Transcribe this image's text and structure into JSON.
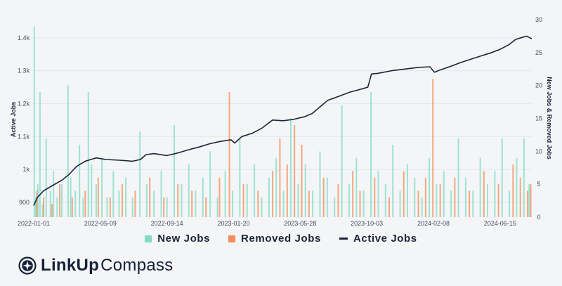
{
  "chart_data": {
    "type": "bar+line",
    "title": "",
    "left_axis": {
      "title": "Active Jobs",
      "ticks": [
        {
          "value": 900,
          "label": "900"
        },
        {
          "value": 1000,
          "label": "1k"
        },
        {
          "value": 1100,
          "label": "1.1k"
        },
        {
          "value": 1200,
          "label": "1.2k"
        },
        {
          "value": 1300,
          "label": "1.3k"
        },
        {
          "value": 1400,
          "label": "1.4k"
        }
      ],
      "range": [
        855,
        1455
      ]
    },
    "right_axis": {
      "title": "New Jobs & Removed Jobs",
      "ticks": [
        {
          "value": 0,
          "label": "0"
        },
        {
          "value": 5,
          "label": "5"
        },
        {
          "value": 10,
          "label": "10"
        },
        {
          "value": 15,
          "label": "15"
        },
        {
          "value": 20,
          "label": "20"
        },
        {
          "value": 25,
          "label": "25"
        },
        {
          "value": 30,
          "label": "30"
        }
      ],
      "range": [
        0,
        30
      ]
    },
    "x_axis": {
      "range": [
        "2022-01-01",
        "2024-08-15"
      ],
      "ticks": [
        {
          "value": "2022-01-01",
          "label": "2022-01-01"
        },
        {
          "value": "2022-05-09",
          "label": "2022-05-09"
        },
        {
          "value": "2022-09-14",
          "label": "2022-09-14"
        },
        {
          "value": "2023-01-20",
          "label": "2023-01-20"
        },
        {
          "value": "2023-05-28",
          "label": "2023-05-28"
        },
        {
          "value": "2023-10-03",
          "label": "2023-10-03"
        },
        {
          "value": "2024-02-08",
          "label": "2024-02-08"
        },
        {
          "value": "2024-06-15",
          "label": "2024-06-15"
        }
      ]
    },
    "grid": true,
    "legend_position": "bottom",
    "series": [
      {
        "name": "New Jobs",
        "kind": "bar",
        "axis": "right",
        "color": "#7fdcc8",
        "points": [
          {
            "x": "2022-01-02",
            "y": 29
          },
          {
            "x": "2022-01-05",
            "y": 3
          },
          {
            "x": "2022-01-09",
            "y": 5
          },
          {
            "x": "2022-01-13",
            "y": 19
          },
          {
            "x": "2022-01-18",
            "y": 2
          },
          {
            "x": "2022-01-25",
            "y": 12
          },
          {
            "x": "2022-02-02",
            "y": 4
          },
          {
            "x": "2022-02-08",
            "y": 7
          },
          {
            "x": "2022-02-15",
            "y": 3
          },
          {
            "x": "2022-02-24",
            "y": 5
          },
          {
            "x": "2022-03-08",
            "y": 20
          },
          {
            "x": "2022-03-13",
            "y": 6
          },
          {
            "x": "2022-03-22",
            "y": 4
          },
          {
            "x": "2022-03-30",
            "y": 11
          },
          {
            "x": "2022-04-06",
            "y": 3
          },
          {
            "x": "2022-04-16",
            "y": 19
          },
          {
            "x": "2022-04-22",
            "y": 8
          },
          {
            "x": "2022-05-01",
            "y": 5
          },
          {
            "x": "2022-05-12",
            "y": 9
          },
          {
            "x": "2022-05-22",
            "y": 3
          },
          {
            "x": "2022-06-03",
            "y": 7
          },
          {
            "x": "2022-06-14",
            "y": 4
          },
          {
            "x": "2022-06-27",
            "y": 6
          },
          {
            "x": "2022-07-10",
            "y": 3
          },
          {
            "x": "2022-07-24",
            "y": 13
          },
          {
            "x": "2022-08-06",
            "y": 5
          },
          {
            "x": "2022-08-20",
            "y": 4
          },
          {
            "x": "2022-09-03",
            "y": 7
          },
          {
            "x": "2022-09-14",
            "y": 3
          },
          {
            "x": "2022-09-28",
            "y": 14
          },
          {
            "x": "2022-10-12",
            "y": 5
          },
          {
            "x": "2022-10-26",
            "y": 8
          },
          {
            "x": "2022-11-08",
            "y": 4
          },
          {
            "x": "2022-11-22",
            "y": 6
          },
          {
            "x": "2022-12-06",
            "y": 10
          },
          {
            "x": "2022-12-20",
            "y": 3
          },
          {
            "x": "2023-01-04",
            "y": 7
          },
          {
            "x": "2023-01-18",
            "y": 4
          },
          {
            "x": "2023-02-01",
            "y": 12
          },
          {
            "x": "2023-02-15",
            "y": 5
          },
          {
            "x": "2023-03-01",
            "y": 8
          },
          {
            "x": "2023-03-15",
            "y": 3
          },
          {
            "x": "2023-03-29",
            "y": 6
          },
          {
            "x": "2023-04-12",
            "y": 9
          },
          {
            "x": "2023-04-26",
            "y": 4
          },
          {
            "x": "2023-05-10",
            "y": 15
          },
          {
            "x": "2023-05-24",
            "y": 5
          },
          {
            "x": "2023-06-07",
            "y": 8
          },
          {
            "x": "2023-06-21",
            "y": 4
          },
          {
            "x": "2023-07-05",
            "y": 10
          },
          {
            "x": "2023-07-19",
            "y": 6
          },
          {
            "x": "2023-08-02",
            "y": 3
          },
          {
            "x": "2023-08-16",
            "y": 17
          },
          {
            "x": "2023-08-30",
            "y": 5
          },
          {
            "x": "2023-09-13",
            "y": 9
          },
          {
            "x": "2023-09-27",
            "y": 4
          },
          {
            "x": "2023-10-11",
            "y": 19
          },
          {
            "x": "2023-10-25",
            "y": 7
          },
          {
            "x": "2023-11-08",
            "y": 5
          },
          {
            "x": "2023-11-22",
            "y": 11
          },
          {
            "x": "2023-12-06",
            "y": 4
          },
          {
            "x": "2023-12-20",
            "y": 8
          },
          {
            "x": "2024-01-03",
            "y": 6
          },
          {
            "x": "2024-01-17",
            "y": 3
          },
          {
            "x": "2024-01-31",
            "y": 9
          },
          {
            "x": "2024-02-14",
            "y": 5
          },
          {
            "x": "2024-02-28",
            "y": 7
          },
          {
            "x": "2024-03-13",
            "y": 4
          },
          {
            "x": "2024-03-27",
            "y": 12
          },
          {
            "x": "2024-04-10",
            "y": 6
          },
          {
            "x": "2024-04-24",
            "y": 4
          },
          {
            "x": "2024-05-08",
            "y": 9
          },
          {
            "x": "2024-05-22",
            "y": 5
          },
          {
            "x": "2024-06-05",
            "y": 7
          },
          {
            "x": "2024-06-19",
            "y": 12
          },
          {
            "x": "2024-07-03",
            "y": 4
          },
          {
            "x": "2024-07-17",
            "y": 9
          },
          {
            "x": "2024-07-31",
            "y": 12
          },
          {
            "x": "2024-08-10",
            "y": 5
          }
        ]
      },
      {
        "name": "Removed Jobs",
        "kind": "bar",
        "axis": "right",
        "color": "#f58b5a",
        "points": [
          {
            "x": "2022-01-07",
            "y": 4
          },
          {
            "x": "2022-01-20",
            "y": 3
          },
          {
            "x": "2022-02-05",
            "y": 2
          },
          {
            "x": "2022-02-20",
            "y": 5
          },
          {
            "x": "2022-03-16",
            "y": 3
          },
          {
            "x": "2022-04-10",
            "y": 4
          },
          {
            "x": "2022-05-05",
            "y": 6
          },
          {
            "x": "2022-05-28",
            "y": 3
          },
          {
            "x": "2022-06-20",
            "y": 5
          },
          {
            "x": "2022-07-15",
            "y": 4
          },
          {
            "x": "2022-08-12",
            "y": 6
          },
          {
            "x": "2022-09-08",
            "y": 3
          },
          {
            "x": "2022-10-05",
            "y": 5
          },
          {
            "x": "2022-11-01",
            "y": 4
          },
          {
            "x": "2022-11-28",
            "y": 3
          },
          {
            "x": "2022-12-24",
            "y": 6
          },
          {
            "x": "2023-01-12",
            "y": 19
          },
          {
            "x": "2023-02-08",
            "y": 5
          },
          {
            "x": "2023-03-08",
            "y": 4
          },
          {
            "x": "2023-04-05",
            "y": 7
          },
          {
            "x": "2023-04-19",
            "y": 12
          },
          {
            "x": "2023-05-03",
            "y": 8
          },
          {
            "x": "2023-05-17",
            "y": 14
          },
          {
            "x": "2023-05-31",
            "y": 11
          },
          {
            "x": "2023-06-14",
            "y": 4
          },
          {
            "x": "2023-07-12",
            "y": 6
          },
          {
            "x": "2023-08-09",
            "y": 5
          },
          {
            "x": "2023-09-06",
            "y": 7
          },
          {
            "x": "2023-09-20",
            "y": 4
          },
          {
            "x": "2023-10-18",
            "y": 6
          },
          {
            "x": "2023-11-15",
            "y": 3
          },
          {
            "x": "2023-12-13",
            "y": 7
          },
          {
            "x": "2024-01-10",
            "y": 4
          },
          {
            "x": "2024-01-24",
            "y": 6
          },
          {
            "x": "2024-02-07",
            "y": 21
          },
          {
            "x": "2024-02-21",
            "y": 5
          },
          {
            "x": "2024-03-20",
            "y": 6
          },
          {
            "x": "2024-04-17",
            "y": 4
          },
          {
            "x": "2024-05-15",
            "y": 7
          },
          {
            "x": "2024-06-12",
            "y": 5
          },
          {
            "x": "2024-07-10",
            "y": 8
          },
          {
            "x": "2024-07-24",
            "y": 6
          },
          {
            "x": "2024-08-07",
            "y": 4
          },
          {
            "x": "2024-08-13",
            "y": 5
          }
        ]
      },
      {
        "name": "Active Jobs",
        "kind": "line",
        "axis": "left",
        "color": "#1b2438",
        "points": [
          {
            "x": "2022-01-01",
            "y": 890
          },
          {
            "x": "2022-01-08",
            "y": 915
          },
          {
            "x": "2022-01-20",
            "y": 935
          },
          {
            "x": "2022-02-05",
            "y": 950
          },
          {
            "x": "2022-02-25",
            "y": 968
          },
          {
            "x": "2022-03-10",
            "y": 985
          },
          {
            "x": "2022-03-25",
            "y": 1010
          },
          {
            "x": "2022-04-10",
            "y": 1025
          },
          {
            "x": "2022-05-01",
            "y": 1035
          },
          {
            "x": "2022-05-20",
            "y": 1030
          },
          {
            "x": "2022-06-15",
            "y": 1028
          },
          {
            "x": "2022-07-10",
            "y": 1025
          },
          {
            "x": "2022-07-25",
            "y": 1030
          },
          {
            "x": "2022-08-05",
            "y": 1045
          },
          {
            "x": "2022-08-20",
            "y": 1048
          },
          {
            "x": "2022-09-14",
            "y": 1042
          },
          {
            "x": "2022-10-05",
            "y": 1050
          },
          {
            "x": "2022-10-26",
            "y": 1060
          },
          {
            "x": "2022-11-15",
            "y": 1068
          },
          {
            "x": "2022-12-05",
            "y": 1078
          },
          {
            "x": "2022-12-25",
            "y": 1085
          },
          {
            "x": "2023-01-15",
            "y": 1090
          },
          {
            "x": "2023-01-22",
            "y": 1080
          },
          {
            "x": "2023-02-05",
            "y": 1100
          },
          {
            "x": "2023-02-25",
            "y": 1110
          },
          {
            "x": "2023-03-15",
            "y": 1125
          },
          {
            "x": "2023-04-05",
            "y": 1150
          },
          {
            "x": "2023-04-25",
            "y": 1148
          },
          {
            "x": "2023-05-15",
            "y": 1152
          },
          {
            "x": "2023-06-05",
            "y": 1160
          },
          {
            "x": "2023-06-20",
            "y": 1170
          },
          {
            "x": "2023-07-05",
            "y": 1190
          },
          {
            "x": "2023-07-20",
            "y": 1210
          },
          {
            "x": "2023-08-10",
            "y": 1222
          },
          {
            "x": "2023-09-01",
            "y": 1235
          },
          {
            "x": "2023-09-25",
            "y": 1245
          },
          {
            "x": "2023-10-05",
            "y": 1250
          },
          {
            "x": "2023-10-12",
            "y": 1290
          },
          {
            "x": "2023-10-25",
            "y": 1292
          },
          {
            "x": "2023-11-20",
            "y": 1300
          },
          {
            "x": "2023-12-15",
            "y": 1305
          },
          {
            "x": "2024-01-10",
            "y": 1310
          },
          {
            "x": "2024-02-01",
            "y": 1312
          },
          {
            "x": "2024-02-10",
            "y": 1295
          },
          {
            "x": "2024-02-20",
            "y": 1302
          },
          {
            "x": "2024-03-10",
            "y": 1312
          },
          {
            "x": "2024-04-01",
            "y": 1325
          },
          {
            "x": "2024-04-20",
            "y": 1335
          },
          {
            "x": "2024-05-10",
            "y": 1345
          },
          {
            "x": "2024-05-30",
            "y": 1355
          },
          {
            "x": "2024-06-15",
            "y": 1365
          },
          {
            "x": "2024-07-01",
            "y": 1378
          },
          {
            "x": "2024-07-15",
            "y": 1395
          },
          {
            "x": "2024-07-25",
            "y": 1400
          },
          {
            "x": "2024-08-05",
            "y": 1405
          },
          {
            "x": "2024-08-15",
            "y": 1397
          }
        ]
      }
    ]
  },
  "legend": {
    "items": [
      {
        "label": "New Jobs",
        "color": "#7fdcc8",
        "shape": "square"
      },
      {
        "label": "Removed Jobs",
        "color": "#f58b5a",
        "shape": "square"
      },
      {
        "label": "Active Jobs",
        "color": "#1b2438",
        "shape": "line"
      }
    ]
  },
  "logo": {
    "brand": "LinkUp",
    "product": "Compass",
    "icon": "compass-icon",
    "color": "#152139"
  }
}
